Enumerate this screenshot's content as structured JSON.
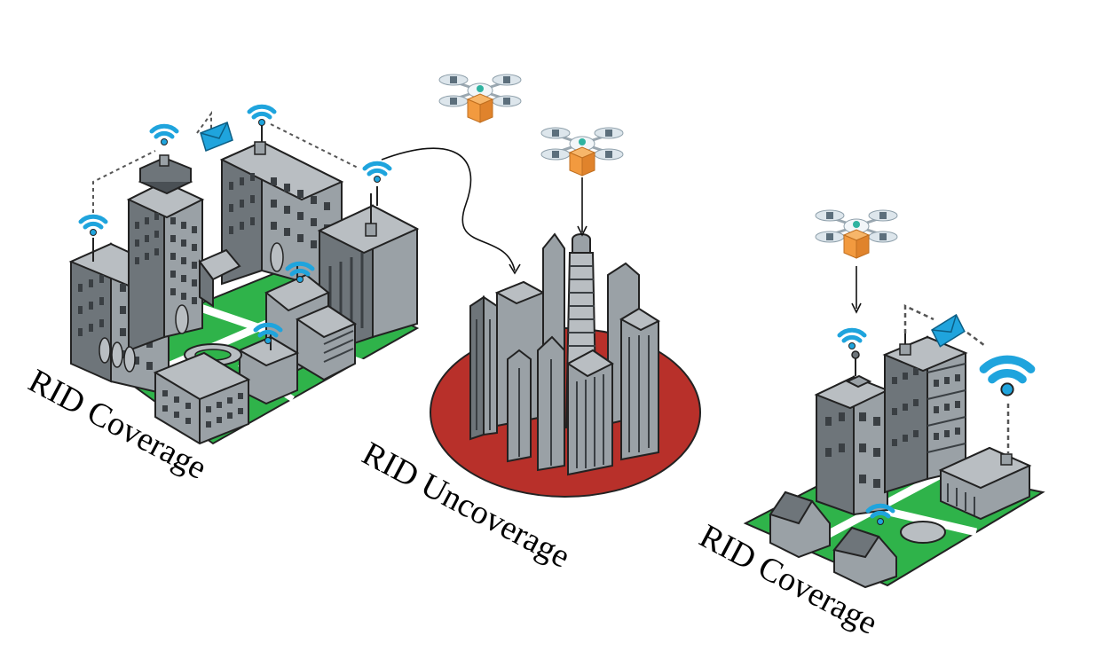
{
  "labels": {
    "left": "RID Coverage",
    "center": "RID Uncoverage",
    "right": "RID Coverage"
  },
  "colors": {
    "building": "#9aa1a6",
    "building_dark": "#6e757a",
    "building_light": "#b9bec2",
    "window": "#3a3f43",
    "ground": "#2fb34a",
    "road": "#ffffff",
    "outline": "#222222",
    "wifi": "#1fa4dd",
    "uncovered_zone": "#b8302a",
    "drone_box": "#f29a3f",
    "drone_body": "#e8eef2"
  },
  "icons": [
    "wifi-icon",
    "envelope-icon",
    "drone-icon",
    "package-icon",
    "arrow-icon"
  ]
}
